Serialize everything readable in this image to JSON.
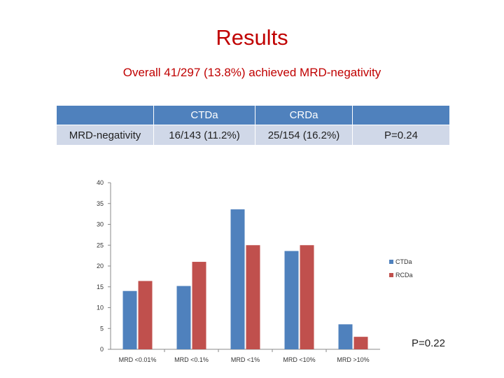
{
  "header": {
    "title": "Results",
    "subtitle": "Overall 41/297 (13.8%) achieved MRD-negativity"
  },
  "summary_table": {
    "header": [
      "",
      "CTDa",
      "CRDa",
      ""
    ],
    "row": [
      "MRD-negativity",
      "16/143 (11.2%)",
      "25/154 (16.2%)",
      "P=0.24"
    ]
  },
  "chart_p_value": "P=0.22",
  "colors": {
    "CTDa": "#4f81bd",
    "RCDa": "#c0504d",
    "title": "#c00000"
  },
  "chart_data": {
    "type": "bar",
    "categories": [
      "MRD <0.01%",
      "MRD <0.1%",
      "MRD <1%",
      "MRD <10%",
      "MRD >10%"
    ],
    "series": [
      {
        "name": "CTDa",
        "values": [
          14,
          15.2,
          33.6,
          23.6,
          6
        ]
      },
      {
        "name": "RCDa",
        "values": [
          16.4,
          21,
          25,
          25,
          3
        ]
      }
    ],
    "ylim": [
      0,
      40
    ],
    "yticks": [
      0,
      5,
      10,
      15,
      20,
      25,
      30,
      35,
      40
    ],
    "legend": "right",
    "grid": false,
    "title": "",
    "xlabel": "",
    "ylabel": ""
  }
}
